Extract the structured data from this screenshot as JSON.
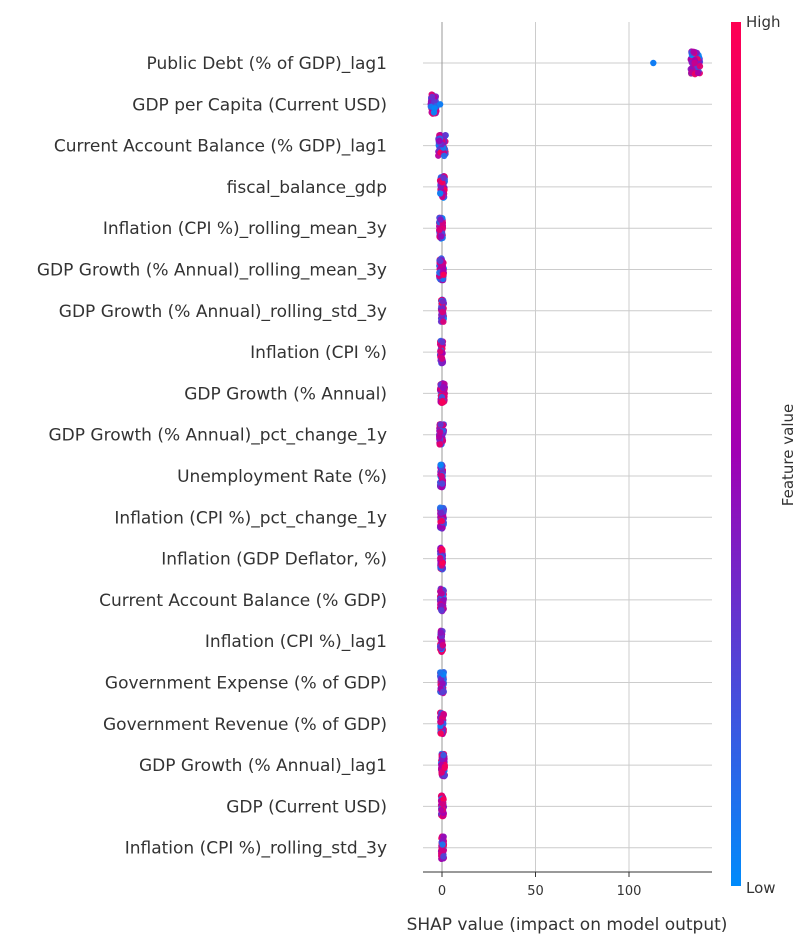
{
  "chart_data": {
    "type": "scatter",
    "subtype": "shap-beeswarm",
    "title": "",
    "xlabel": "SHAP value (impact on model output)",
    "ylabel": "",
    "xlim": [
      -12,
      145
    ],
    "xticks": [
      0,
      50,
      100
    ],
    "grid": "horizontal rows + x ticks",
    "colorbar": {
      "label": "Feature value",
      "high_label": "High",
      "low_label": "Low",
      "low_color": "#008bfb",
      "high_color": "#ff0052",
      "mid_color": "#a000b4"
    },
    "features": [
      {
        "name": "Public Debt (% of GDP)_lag1",
        "min": 133,
        "max": 138,
        "outliers": [
          113
        ],
        "spread": 0.85
      },
      {
        "name": "GDP per Capita (Current USD)",
        "min": -6,
        "max": -3,
        "outliers": [
          -1
        ],
        "spread": 0.7
      },
      {
        "name": "Current Account Balance (% GDP)_lag1",
        "min": -2,
        "max": 2,
        "outliers": [],
        "spread": 0.75
      },
      {
        "name": "fiscal_balance_gdp",
        "min": -1,
        "max": 1.5,
        "outliers": [],
        "spread": 0.8
      },
      {
        "name": "Inflation (CPI %)_rolling_mean_3y",
        "min": -1.5,
        "max": 0.5,
        "outliers": [],
        "spread": 0.75
      },
      {
        "name": "GDP Growth (% Annual)_rolling_mean_3y",
        "min": -1.5,
        "max": 1,
        "outliers": [],
        "spread": 0.8
      },
      {
        "name": "GDP Growth (% Annual)_rolling_std_3y",
        "min": -0.5,
        "max": 1,
        "outliers": [],
        "spread": 0.8
      },
      {
        "name": "Inflation (CPI %)",
        "min": -1,
        "max": 0.5,
        "outliers": [],
        "spread": 0.8
      },
      {
        "name": "GDP Growth (% Annual)",
        "min": -1,
        "max": 1.5,
        "outliers": [],
        "spread": 0.75
      },
      {
        "name": "GDP Growth (% Annual)_pct_change_1y",
        "min": -1.5,
        "max": 1,
        "outliers": [],
        "spread": 0.75
      },
      {
        "name": "Unemployment Rate (%)",
        "min": -1,
        "max": 0.5,
        "outliers": [],
        "spread": 0.8
      },
      {
        "name": "Inflation (CPI %)_pct_change_1y",
        "min": -1,
        "max": 1,
        "outliers": [],
        "spread": 0.8
      },
      {
        "name": "Inflation (GDP Deflator, %)",
        "min": -1,
        "max": 0.5,
        "outliers": [],
        "spread": 0.8
      },
      {
        "name": "Current Account Balance (% GDP)",
        "min": -1,
        "max": 1,
        "outliers": [],
        "spread": 0.8
      },
      {
        "name": "Inflation (CPI %)_lag1",
        "min": -1,
        "max": 0.5,
        "outliers": [],
        "spread": 0.8
      },
      {
        "name": "Government Expense (% of GDP)",
        "min": -1,
        "max": 1,
        "outliers": [],
        "spread": 0.75
      },
      {
        "name": "Government Revenue (% of GDP)",
        "min": -1,
        "max": 1,
        "outliers": [],
        "spread": 0.8
      },
      {
        "name": "GDP Growth (% Annual)_lag1",
        "min": -0.5,
        "max": 1.5,
        "outliers": [],
        "spread": 0.8
      },
      {
        "name": "GDP (Current USD)",
        "min": -0.5,
        "max": 1,
        "outliers": [],
        "spread": 0.8
      },
      {
        "name": "Inflation (CPI %)_rolling_std_3y",
        "min": -0.5,
        "max": 1,
        "outliers": [],
        "spread": 0.8
      }
    ]
  }
}
